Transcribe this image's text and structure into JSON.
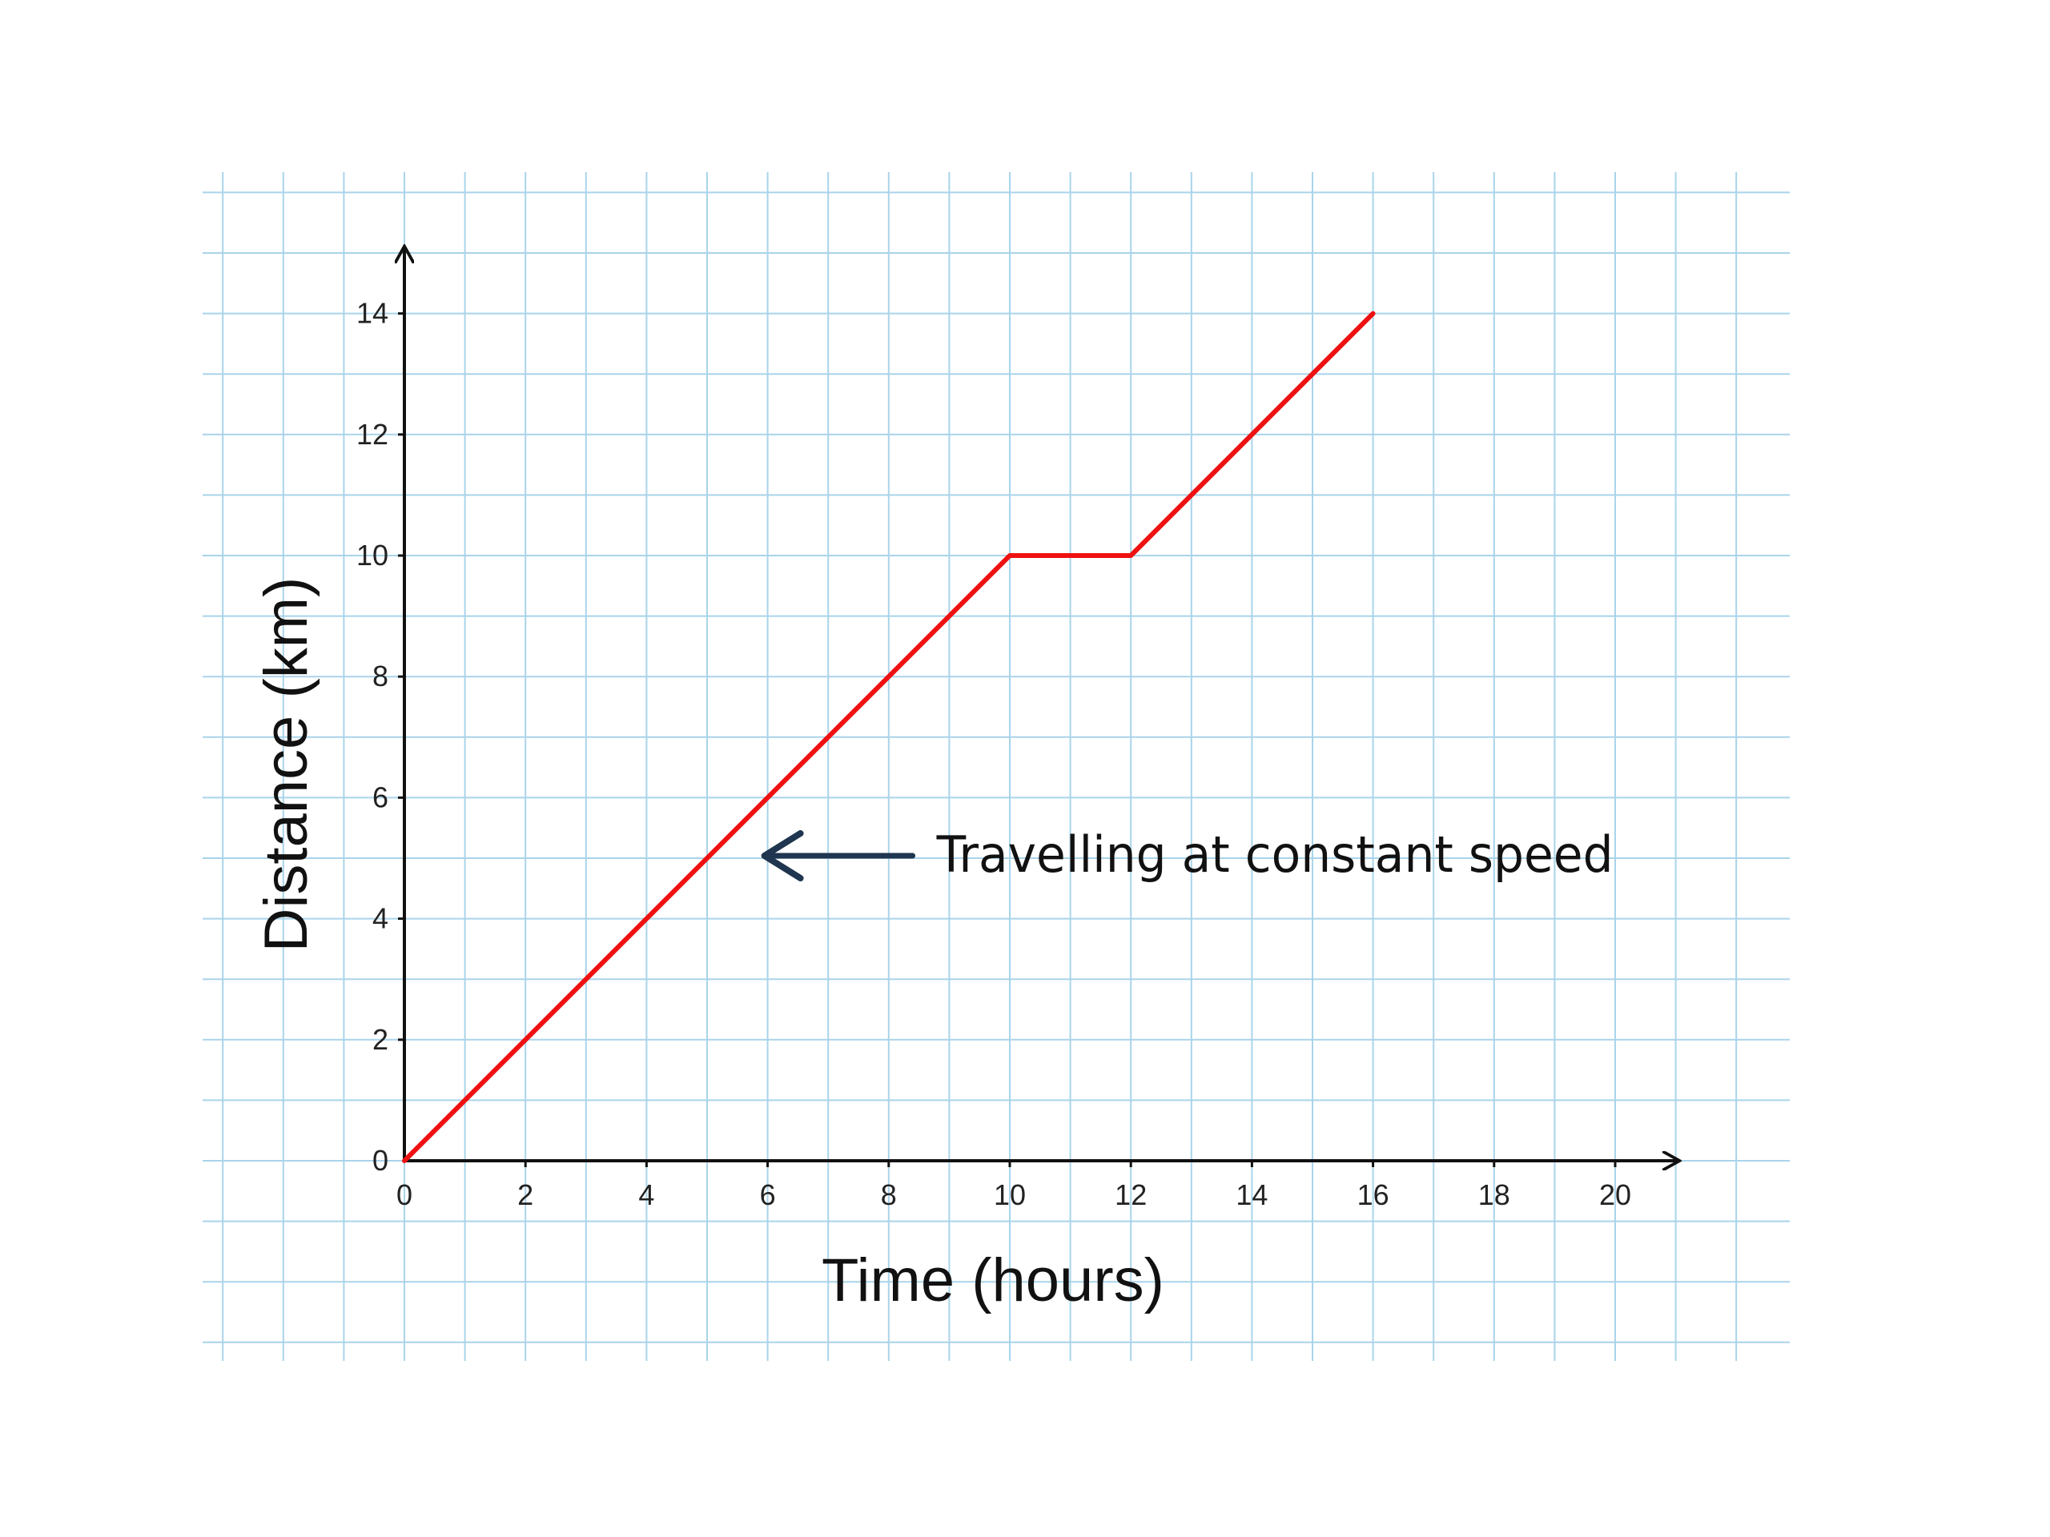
{
  "colors": {
    "background": "#ffffff",
    "grid": "#a9d4ea",
    "axis": "#111111",
    "series": "#ee1111",
    "annotation_arrow": "#1f3550"
  },
  "chart_data": {
    "type": "line",
    "xlabel": "Time (hours)",
    "ylabel": "Distance (km)",
    "xlim": [
      0,
      20
    ],
    "ylim": [
      0,
      14
    ],
    "x_ticks": [
      "0",
      "2",
      "4",
      "6",
      "8",
      "10",
      "12",
      "14",
      "16",
      "18",
      "20"
    ],
    "y_ticks": [
      "0",
      "2",
      "4",
      "6",
      "8",
      "10",
      "12",
      "14"
    ],
    "grid": true,
    "series": [
      {
        "x": [
          0,
          10,
          12,
          16
        ],
        "y": [
          0,
          10,
          10,
          14
        ]
      }
    ],
    "annotations": [
      {
        "text": "Travelling at constant speed",
        "points_to": {
          "x": 6,
          "y": 5
        }
      }
    ]
  }
}
